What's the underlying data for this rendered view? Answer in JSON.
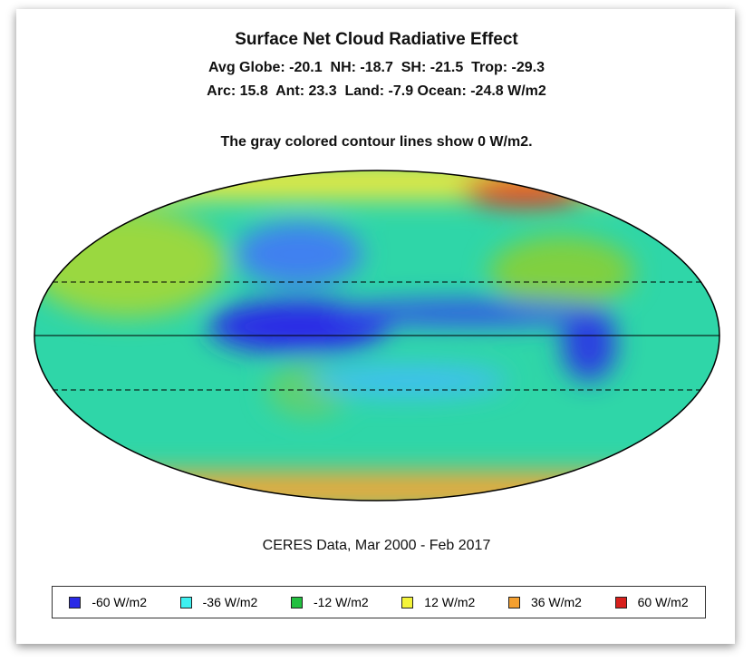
{
  "title": "Surface Net Cloud Radiative Effect",
  "stats": [
    "Avg Globe: -20.1  NH: -18.7  SH: -21.5  Trop: -29.3",
    "Arc: 15.8  Ant: 23.3  Land: -7.9 Ocean: -24.8 W/m2"
  ],
  "note": "The gray colored contour lines show 0 W/m2.",
  "source": "CERES Data, Mar 2000 - Feb 2017",
  "legend": [
    {
      "label": "-60 W/m2",
      "color": "#2a2ae6"
    },
    {
      "label": "-36 W/m2",
      "color": "#3ef0f0"
    },
    {
      "label": "-12 W/m2",
      "color": "#22c040"
    },
    {
      "label": "12 W/m2",
      "color": "#f4f43a"
    },
    {
      "label": "36 W/m2",
      "color": "#f4a030"
    },
    {
      "label": "60 W/m2",
      "color": "#d8201c"
    }
  ]
}
